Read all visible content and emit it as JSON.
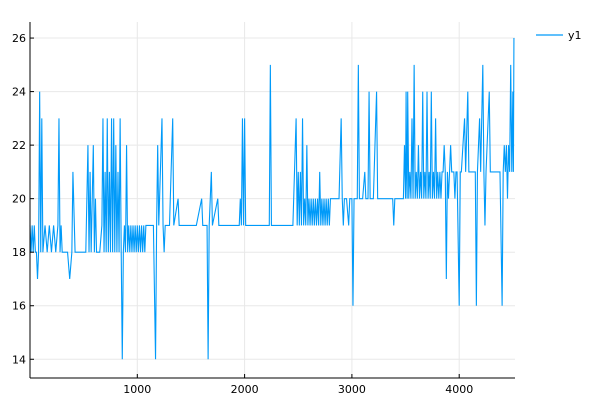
{
  "chart_data": {
    "type": "line",
    "title": "",
    "xlabel": "",
    "ylabel": "",
    "xlim": [
      0,
      4520
    ],
    "ylim": [
      13.3,
      26.6
    ],
    "xticks": [
      1000,
      2000,
      3000,
      4000
    ],
    "yticks": [
      14,
      16,
      18,
      20,
      22,
      24,
      26
    ],
    "grid": true,
    "legend_position": "top-right",
    "colors": {
      "series": "#009AF9",
      "grid": "#e8e8e8",
      "axis": "#000000"
    },
    "series": [
      {
        "name": "y1",
        "points": [
          [
            0,
            19
          ],
          [
            10,
            18
          ],
          [
            20,
            19
          ],
          [
            30,
            18
          ],
          [
            40,
            19
          ],
          [
            50,
            18
          ],
          [
            60,
            18
          ],
          [
            70,
            17
          ],
          [
            80,
            18
          ],
          [
            90,
            24
          ],
          [
            100,
            18
          ],
          [
            110,
            23
          ],
          [
            120,
            18
          ],
          [
            140,
            19
          ],
          [
            160,
            18
          ],
          [
            180,
            19
          ],
          [
            200,
            18
          ],
          [
            220,
            19
          ],
          [
            240,
            18
          ],
          [
            260,
            19
          ],
          [
            270,
            23
          ],
          [
            280,
            18
          ],
          [
            290,
            19
          ],
          [
            300,
            18
          ],
          [
            320,
            18
          ],
          [
            350,
            18
          ],
          [
            370,
            17
          ],
          [
            390,
            18
          ],
          [
            400,
            21
          ],
          [
            420,
            18
          ],
          [
            450,
            18
          ],
          [
            480,
            18
          ],
          [
            500,
            18
          ],
          [
            520,
            18
          ],
          [
            540,
            22
          ],
          [
            550,
            18
          ],
          [
            560,
            21
          ],
          [
            570,
            18
          ],
          [
            590,
            22
          ],
          [
            600,
            18
          ],
          [
            610,
            20
          ],
          [
            620,
            18
          ],
          [
            650,
            18
          ],
          [
            670,
            19
          ],
          [
            680,
            23
          ],
          [
            690,
            18
          ],
          [
            700,
            21
          ],
          [
            710,
            18
          ],
          [
            720,
            23
          ],
          [
            730,
            18
          ],
          [
            740,
            21
          ],
          [
            750,
            18
          ],
          [
            760,
            23
          ],
          [
            770,
            18
          ],
          [
            780,
            23
          ],
          [
            790,
            18
          ],
          [
            800,
            22
          ],
          [
            810,
            18
          ],
          [
            820,
            21
          ],
          [
            830,
            18
          ],
          [
            840,
            23
          ],
          [
            850,
            18
          ],
          [
            860,
            14
          ],
          [
            870,
            18
          ],
          [
            880,
            19
          ],
          [
            890,
            18
          ],
          [
            900,
            22
          ],
          [
            910,
            18
          ],
          [
            920,
            19
          ],
          [
            930,
            18
          ],
          [
            940,
            19
          ],
          [
            950,
            18
          ],
          [
            960,
            19
          ],
          [
            970,
            18
          ],
          [
            980,
            19
          ],
          [
            990,
            18
          ],
          [
            1000,
            19
          ],
          [
            1010,
            18
          ],
          [
            1020,
            19
          ],
          [
            1030,
            18
          ],
          [
            1040,
            19
          ],
          [
            1050,
            18
          ],
          [
            1060,
            19
          ],
          [
            1070,
            18
          ],
          [
            1080,
            19
          ],
          [
            1090,
            19
          ],
          [
            1100,
            19
          ],
          [
            1120,
            19
          ],
          [
            1150,
            19
          ],
          [
            1170,
            14
          ],
          [
            1180,
            19
          ],
          [
            1190,
            22
          ],
          [
            1200,
            19
          ],
          [
            1230,
            23
          ],
          [
            1240,
            19
          ],
          [
            1250,
            18
          ],
          [
            1260,
            19
          ],
          [
            1300,
            19
          ],
          [
            1330,
            23
          ],
          [
            1340,
            19
          ],
          [
            1380,
            20
          ],
          [
            1390,
            19
          ],
          [
            1450,
            19
          ],
          [
            1500,
            19
          ],
          [
            1550,
            19
          ],
          [
            1600,
            20
          ],
          [
            1610,
            19
          ],
          [
            1650,
            19
          ],
          [
            1660,
            14
          ],
          [
            1670,
            19
          ],
          [
            1690,
            21
          ],
          [
            1700,
            19
          ],
          [
            1750,
            20
          ],
          [
            1760,
            19
          ],
          [
            1800,
            19
          ],
          [
            1850,
            19
          ],
          [
            1900,
            19
          ],
          [
            1950,
            19
          ],
          [
            1960,
            20
          ],
          [
            1970,
            19
          ],
          [
            1980,
            23
          ],
          [
            1990,
            19
          ],
          [
            2000,
            23
          ],
          [
            2010,
            19
          ],
          [
            2050,
            19
          ],
          [
            2100,
            19
          ],
          [
            2150,
            19
          ],
          [
            2200,
            19
          ],
          [
            2230,
            19
          ],
          [
            2240,
            25
          ],
          [
            2250,
            19
          ],
          [
            2300,
            19
          ],
          [
            2350,
            19
          ],
          [
            2400,
            19
          ],
          [
            2450,
            19
          ],
          [
            2480,
            23
          ],
          [
            2490,
            19
          ],
          [
            2500,
            21
          ],
          [
            2510,
            19
          ],
          [
            2520,
            21
          ],
          [
            2530,
            19
          ],
          [
            2540,
            23
          ],
          [
            2550,
            19
          ],
          [
            2560,
            20
          ],
          [
            2570,
            19
          ],
          [
            2580,
            22
          ],
          [
            2590,
            19
          ],
          [
            2600,
            20
          ],
          [
            2610,
            19
          ],
          [
            2620,
            20
          ],
          [
            2630,
            19
          ],
          [
            2640,
            20
          ],
          [
            2650,
            19
          ],
          [
            2660,
            20
          ],
          [
            2670,
            19
          ],
          [
            2680,
            20
          ],
          [
            2690,
            19
          ],
          [
            2700,
            21
          ],
          [
            2710,
            19
          ],
          [
            2720,
            20
          ],
          [
            2730,
            19
          ],
          [
            2740,
            20
          ],
          [
            2750,
            19
          ],
          [
            2760,
            20
          ],
          [
            2770,
            19
          ],
          [
            2780,
            20
          ],
          [
            2790,
            19
          ],
          [
            2800,
            20
          ],
          [
            2820,
            20
          ],
          [
            2850,
            20
          ],
          [
            2880,
            20
          ],
          [
            2900,
            23
          ],
          [
            2910,
            20
          ],
          [
            2920,
            19
          ],
          [
            2930,
            20
          ],
          [
            2950,
            20
          ],
          [
            2970,
            19
          ],
          [
            2980,
            20
          ],
          [
            3000,
            20
          ],
          [
            3010,
            16
          ],
          [
            3020,
            20
          ],
          [
            3050,
            20
          ],
          [
            3060,
            25
          ],
          [
            3070,
            20
          ],
          [
            3100,
            20
          ],
          [
            3120,
            21
          ],
          [
            3130,
            20
          ],
          [
            3150,
            20
          ],
          [
            3160,
            24
          ],
          [
            3170,
            20
          ],
          [
            3200,
            20
          ],
          [
            3230,
            24
          ],
          [
            3240,
            20
          ],
          [
            3300,
            20
          ],
          [
            3350,
            20
          ],
          [
            3380,
            20
          ],
          [
            3390,
            19
          ],
          [
            3400,
            20
          ],
          [
            3450,
            20
          ],
          [
            3480,
            20
          ],
          [
            3490,
            22
          ],
          [
            3500,
            20
          ],
          [
            3505,
            24
          ],
          [
            3510,
            21
          ],
          [
            3515,
            20
          ],
          [
            3520,
            24
          ],
          [
            3530,
            20
          ],
          [
            3540,
            21
          ],
          [
            3550,
            20
          ],
          [
            3560,
            23
          ],
          [
            3570,
            20
          ],
          [
            3580,
            25
          ],
          [
            3590,
            20
          ],
          [
            3600,
            21
          ],
          [
            3610,
            20
          ],
          [
            3620,
            22
          ],
          [
            3630,
            20
          ],
          [
            3640,
            21
          ],
          [
            3650,
            20
          ],
          [
            3660,
            24
          ],
          [
            3670,
            20
          ],
          [
            3680,
            21
          ],
          [
            3690,
            20
          ],
          [
            3700,
            24
          ],
          [
            3710,
            20
          ],
          [
            3720,
            21
          ],
          [
            3730,
            20
          ],
          [
            3740,
            24
          ],
          [
            3750,
            20
          ],
          [
            3760,
            21
          ],
          [
            3770,
            20
          ],
          [
            3780,
            23
          ],
          [
            3790,
            20
          ],
          [
            3800,
            21
          ],
          [
            3810,
            20
          ],
          [
            3820,
            21
          ],
          [
            3830,
            20
          ],
          [
            3840,
            21
          ],
          [
            3850,
            21
          ],
          [
            3860,
            22
          ],
          [
            3870,
            21
          ],
          [
            3880,
            17
          ],
          [
            3890,
            21
          ],
          [
            3900,
            20
          ],
          [
            3910,
            21
          ],
          [
            3920,
            22
          ],
          [
            3930,
            21
          ],
          [
            3950,
            21
          ],
          [
            3960,
            20
          ],
          [
            3970,
            21
          ],
          [
            3980,
            21
          ],
          [
            4000,
            16
          ],
          [
            4010,
            21
          ],
          [
            4020,
            21
          ],
          [
            4050,
            23
          ],
          [
            4060,
            21
          ],
          [
            4080,
            24
          ],
          [
            4090,
            21
          ],
          [
            4100,
            21
          ],
          [
            4150,
            21
          ],
          [
            4160,
            16
          ],
          [
            4170,
            21
          ],
          [
            4190,
            23
          ],
          [
            4200,
            21
          ],
          [
            4220,
            25
          ],
          [
            4230,
            21
          ],
          [
            4240,
            19
          ],
          [
            4250,
            21
          ],
          [
            4280,
            24
          ],
          [
            4290,
            21
          ],
          [
            4300,
            21
          ],
          [
            4350,
            21
          ],
          [
            4380,
            21
          ],
          [
            4400,
            16
          ],
          [
            4410,
            21
          ],
          [
            4420,
            22
          ],
          [
            4430,
            21
          ],
          [
            4440,
            22
          ],
          [
            4450,
            20
          ],
          [
            4460,
            22
          ],
          [
            4470,
            21
          ],
          [
            4480,
            25
          ],
          [
            4490,
            21
          ],
          [
            4500,
            24
          ],
          [
            4505,
            21
          ],
          [
            4510,
            26
          ]
        ]
      }
    ]
  }
}
